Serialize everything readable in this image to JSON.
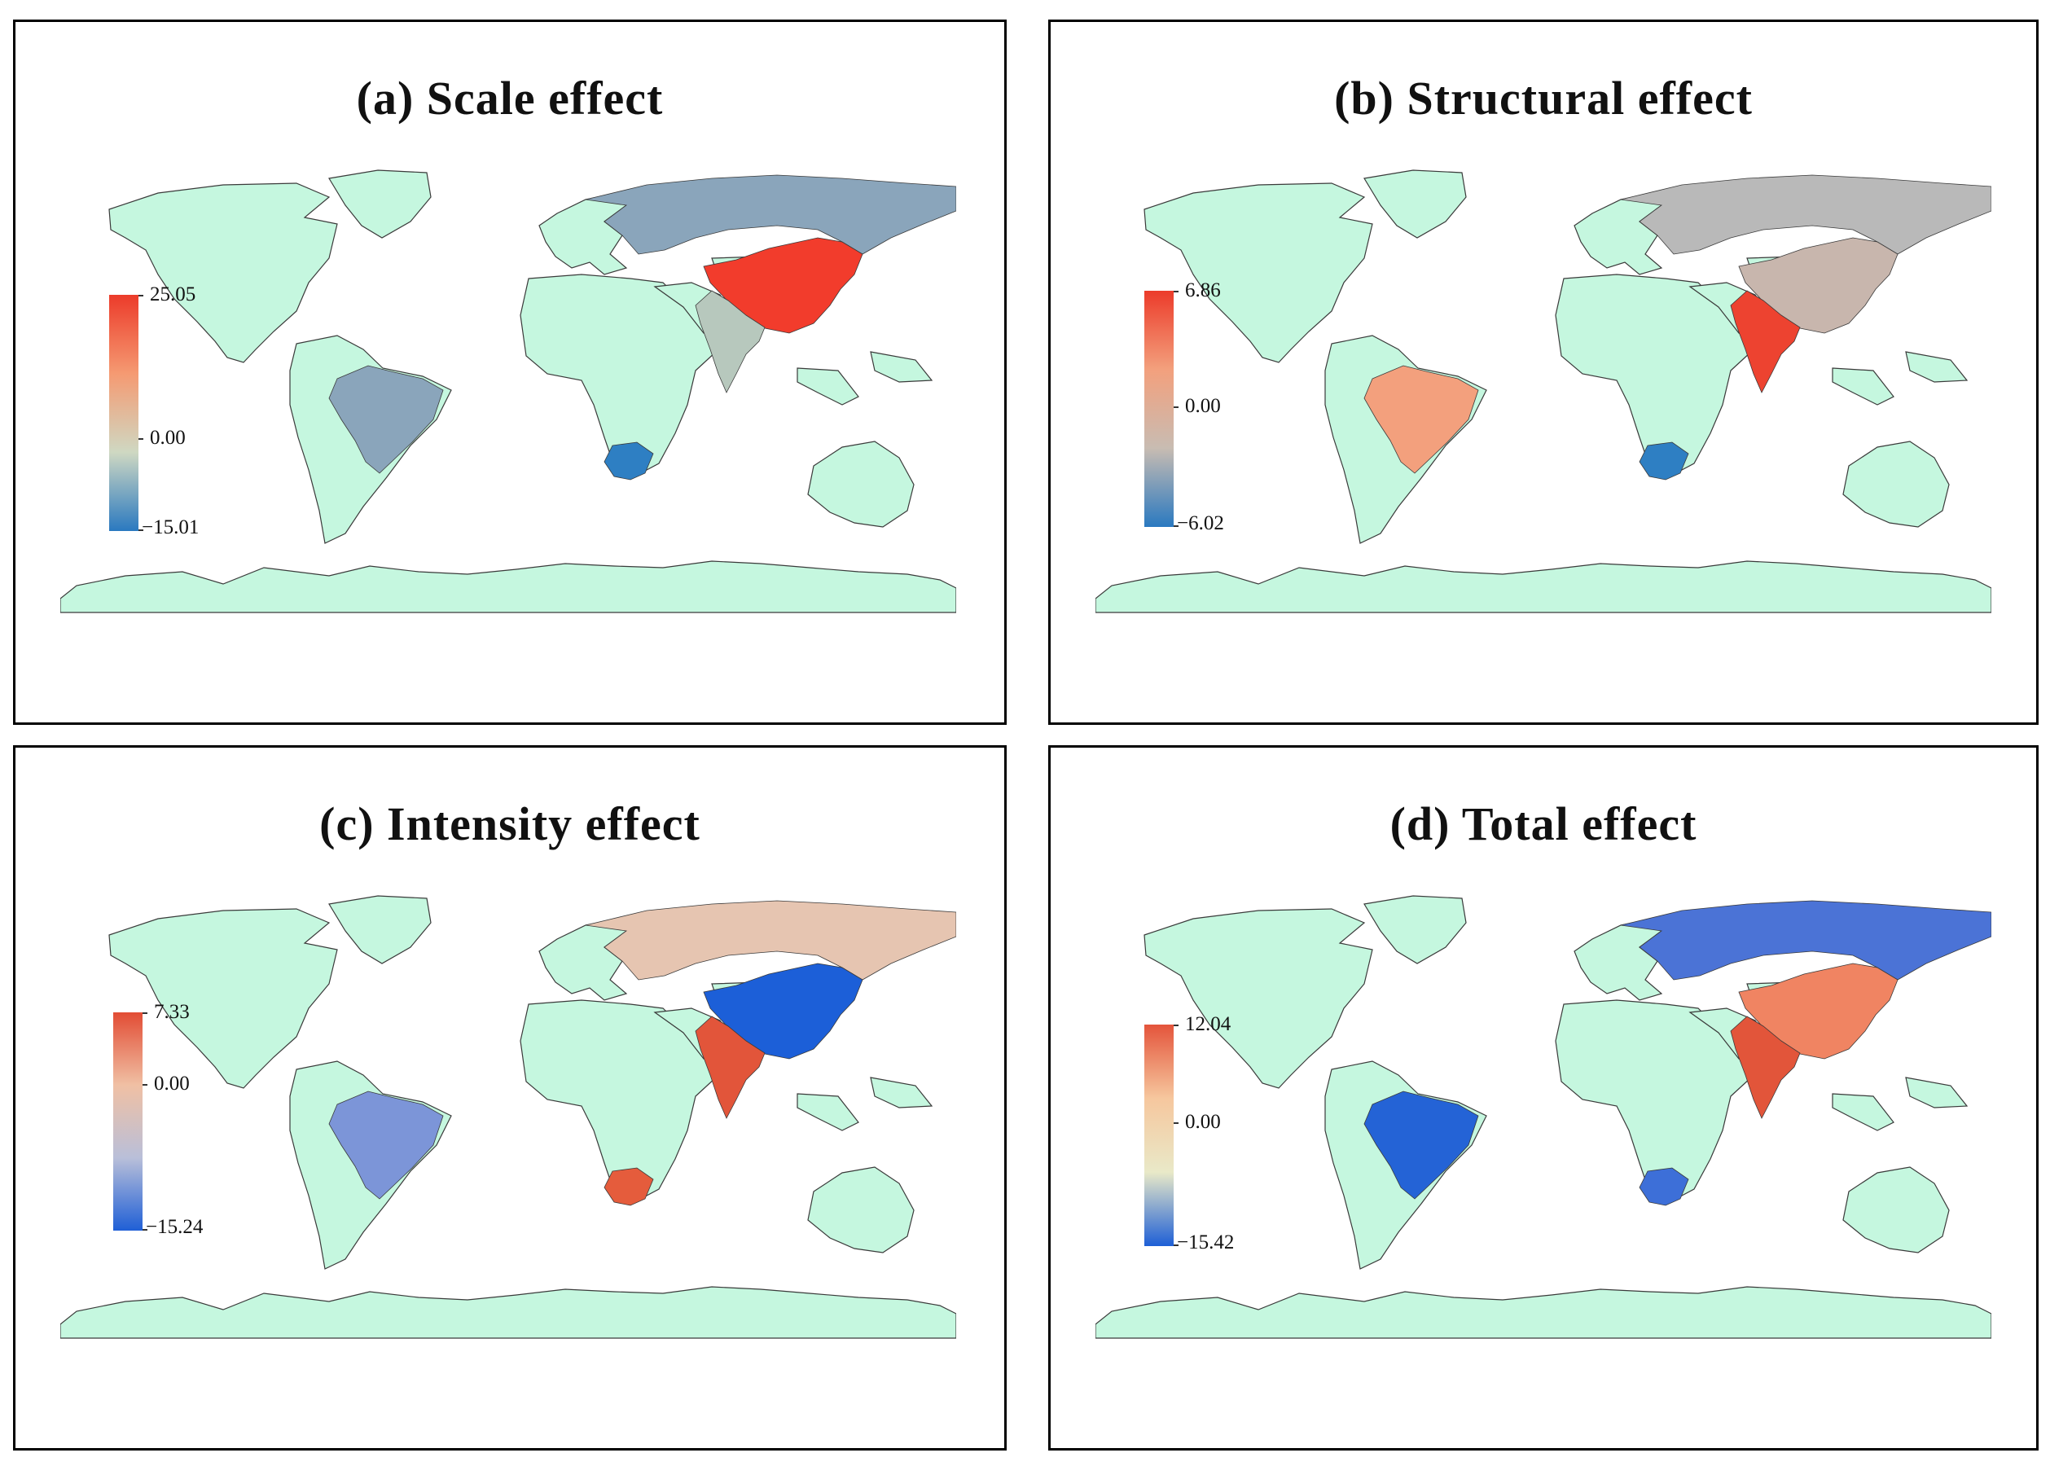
{
  "colors": {
    "ocean": "#ffffff",
    "land": "#c5f7df",
    "border": "#3a3a3a"
  },
  "panels": {
    "a": {
      "title": "(a) Scale effect",
      "legend": {
        "max": "25.05",
        "mid": "0.00",
        "min": "−15.01",
        "gradient": [
          "#ec3b2a",
          "#f59a72",
          "#cfd8c2",
          "#2a79c0"
        ]
      },
      "countries": {
        "russia": "#8aa5bb",
        "china": "#f23c2c",
        "india": "#b7c8bd",
        "brazil": "#8aa5bb",
        "south_africa": "#2e7fc3"
      }
    },
    "b": {
      "title": "(b) Structural effect",
      "legend": {
        "max": "6.86",
        "mid": "0.00",
        "min": "−6.02",
        "gradient": [
          "#ec3b2a",
          "#f3a07d",
          "#c8bcb2",
          "#2a79c0"
        ]
      },
      "countries": {
        "russia": "#b9b9b9",
        "china": "#c8b6ad",
        "india": "#ed4330",
        "brazil": "#f3a07d",
        "south_africa": "#2e7fc3"
      }
    },
    "c": {
      "title": "(c) Intensity effect",
      "legend": {
        "max": "7.33",
        "mid": "0.00",
        "min": "−15.24",
        "gradient": [
          "#e24c34",
          "#f0c0a4",
          "#b9bfd9",
          "#1f5fd6"
        ]
      },
      "countries": {
        "russia": "#e6c5b1",
        "china": "#1c5fd8",
        "india": "#e2553a",
        "brazil": "#7c95d8",
        "south_africa": "#e55c3c"
      }
    },
    "d": {
      "title": "(d) Total effect",
      "legend": {
        "max": "12.04",
        "mid": "0.00",
        "min": "−15.42",
        "gradient": [
          "#e4543b",
          "#f6c79e",
          "#e9e9c8",
          "#1e5fd6"
        ]
      },
      "countries": {
        "russia": "#4b73d6",
        "china": "#f08462",
        "india": "#e2553a",
        "brazil": "#2463d6",
        "south_africa": "#3d6fd8"
      }
    }
  }
}
